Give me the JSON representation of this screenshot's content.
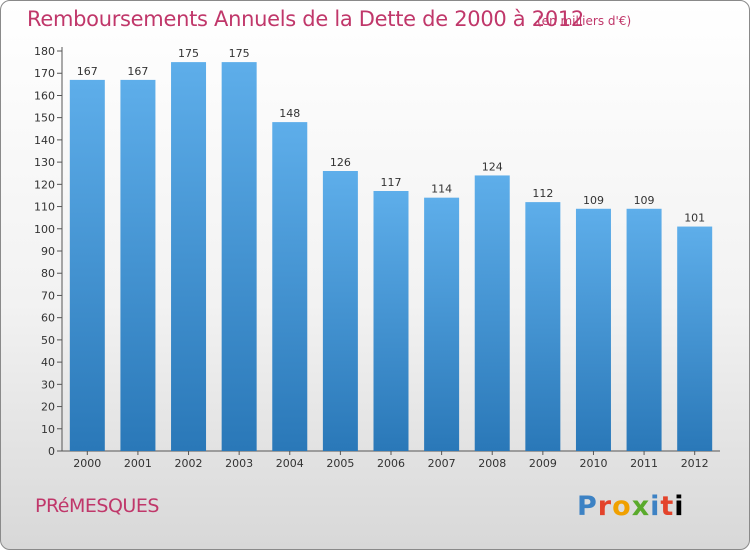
{
  "header": {
    "title": "Remboursements Annuels de la Dette de 2000 à 2012",
    "unit": "(en milliers d'€)"
  },
  "footer": {
    "commune": "PRéMESQUES",
    "logo": "Proxiti"
  },
  "colors": {
    "accent": "#c0376a",
    "bar_top": "#5eaeea",
    "bar_bottom": "#2a78b8"
  },
  "chart_data": {
    "type": "bar",
    "title": "Remboursements Annuels de la Dette de 2000 à 2012",
    "subtitle": "(en milliers d'€)",
    "xlabel": "",
    "ylabel": "",
    "categories": [
      "2000",
      "2001",
      "2002",
      "2003",
      "2004",
      "2005",
      "2006",
      "2007",
      "2008",
      "2009",
      "2010",
      "2011",
      "2012"
    ],
    "values": [
      167,
      167,
      175,
      175,
      148,
      126,
      117,
      114,
      124,
      112,
      109,
      109,
      101
    ],
    "ylim": [
      0,
      180
    ],
    "yticks": [
      0,
      10,
      20,
      30,
      40,
      50,
      60,
      70,
      80,
      90,
      100,
      110,
      120,
      130,
      140,
      150,
      160,
      170,
      180
    ],
    "grid": false,
    "data_labels": true
  }
}
